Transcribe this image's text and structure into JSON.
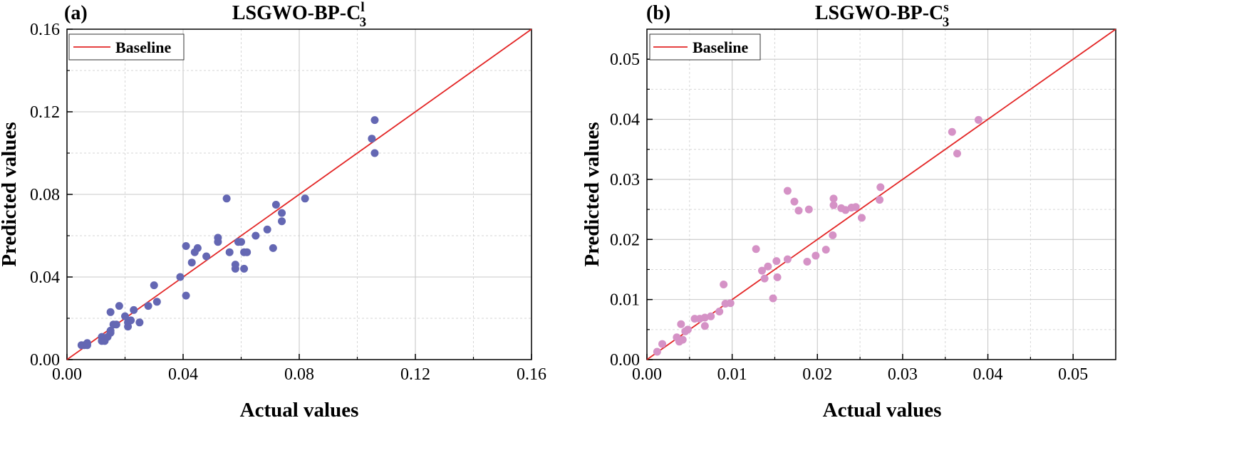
{
  "chart_data": [
    {
      "type": "scatter",
      "panel_label": "(a)",
      "title_main": "LSGWO-BP-C",
      "title_sub": "3",
      "title_sup": "l",
      "xlabel": "Actual values",
      "ylabel": "Predicted values",
      "xlim": [
        0,
        0.16
      ],
      "ylim": [
        0,
        0.16
      ],
      "xticks": [
        "0.00",
        "0.04",
        "0.08",
        "0.12",
        "0.16"
      ],
      "yticks": [
        "0.00",
        "0.04",
        "0.08",
        "0.12",
        "0.16"
      ],
      "major_step": 0.04,
      "minor_step": 0.02,
      "grid": true,
      "legend": {
        "label": "Baseline",
        "position": "top-left"
      },
      "baseline": {
        "name": "Baseline",
        "color": "#e32626"
      },
      "point_color": "#6467b3",
      "points": [
        [
          0.005,
          0.007
        ],
        [
          0.006,
          0.007
        ],
        [
          0.007,
          0.008
        ],
        [
          0.007,
          0.007
        ],
        [
          0.012,
          0.009
        ],
        [
          0.012,
          0.011
        ],
        [
          0.013,
          0.009
        ],
        [
          0.014,
          0.011
        ],
        [
          0.015,
          0.013
        ],
        [
          0.015,
          0.014
        ],
        [
          0.015,
          0.023
        ],
        [
          0.016,
          0.017
        ],
        [
          0.017,
          0.017
        ],
        [
          0.018,
          0.026
        ],
        [
          0.02,
          0.021
        ],
        [
          0.021,
          0.016
        ],
        [
          0.021,
          0.018
        ],
        [
          0.022,
          0.019
        ],
        [
          0.023,
          0.024
        ],
        [
          0.025,
          0.018
        ],
        [
          0.028,
          0.026
        ],
        [
          0.03,
          0.036
        ],
        [
          0.031,
          0.028
        ],
        [
          0.039,
          0.04
        ],
        [
          0.041,
          0.031
        ],
        [
          0.041,
          0.055
        ],
        [
          0.043,
          0.047
        ],
        [
          0.044,
          0.052
        ],
        [
          0.045,
          0.054
        ],
        [
          0.048,
          0.05
        ],
        [
          0.052,
          0.059
        ],
        [
          0.052,
          0.057
        ],
        [
          0.055,
          0.078
        ],
        [
          0.056,
          0.052
        ],
        [
          0.058,
          0.044
        ],
        [
          0.058,
          0.046
        ],
        [
          0.059,
          0.057
        ],
        [
          0.06,
          0.057
        ],
        [
          0.061,
          0.052
        ],
        [
          0.061,
          0.044
        ],
        [
          0.062,
          0.052
        ],
        [
          0.065,
          0.06
        ],
        [
          0.069,
          0.063
        ],
        [
          0.071,
          0.054
        ],
        [
          0.072,
          0.075
        ],
        [
          0.074,
          0.071
        ],
        [
          0.074,
          0.067
        ],
        [
          0.082,
          0.078
        ],
        [
          0.105,
          0.107
        ],
        [
          0.106,
          0.1
        ],
        [
          0.106,
          0.116
        ]
      ]
    },
    {
      "type": "scatter",
      "panel_label": "(b)",
      "title_main": "LSGWO-BP-C",
      "title_sub": "3",
      "title_sup": "s",
      "xlabel": "Actual values",
      "ylabel": "Predicted values",
      "xlim": [
        0,
        0.055
      ],
      "ylim": [
        0,
        0.055
      ],
      "xticks": [
        "0.00",
        "0.01",
        "0.02",
        "0.03",
        "0.04",
        "0.05"
      ],
      "yticks": [
        "0.00",
        "0.01",
        "0.02",
        "0.03",
        "0.04",
        "0.05"
      ],
      "major_step": 0.01,
      "minor_step": 0.005,
      "grid": true,
      "legend": {
        "label": "Baseline",
        "position": "top-left"
      },
      "baseline": {
        "name": "Baseline",
        "color": "#e32626"
      },
      "point_color": "#d592c6",
      "points": [
        [
          0.0012,
          0.0013
        ],
        [
          0.0018,
          0.0026
        ],
        [
          0.0035,
          0.0037
        ],
        [
          0.0038,
          0.003
        ],
        [
          0.004,
          0.0059
        ],
        [
          0.0042,
          0.0033
        ],
        [
          0.0045,
          0.0047
        ],
        [
          0.0048,
          0.005
        ],
        [
          0.0056,
          0.0068
        ],
        [
          0.0062,
          0.0068
        ],
        [
          0.0068,
          0.007
        ],
        [
          0.0068,
          0.0056
        ],
        [
          0.0075,
          0.0072
        ],
        [
          0.0085,
          0.008
        ],
        [
          0.009,
          0.0125
        ],
        [
          0.0092,
          0.0093
        ],
        [
          0.0098,
          0.0094
        ],
        [
          0.0128,
          0.0184
        ],
        [
          0.0135,
          0.0148
        ],
        [
          0.0138,
          0.0135
        ],
        [
          0.0142,
          0.0155
        ],
        [
          0.0148,
          0.0102
        ],
        [
          0.0152,
          0.0164
        ],
        [
          0.0153,
          0.0137
        ],
        [
          0.0165,
          0.0281
        ],
        [
          0.0165,
          0.0167
        ],
        [
          0.0173,
          0.0263
        ],
        [
          0.0178,
          0.0248
        ],
        [
          0.0188,
          0.0163
        ],
        [
          0.019,
          0.025
        ],
        [
          0.0198,
          0.0173
        ],
        [
          0.021,
          0.0183
        ],
        [
          0.0218,
          0.0207
        ],
        [
          0.0219,
          0.0257
        ],
        [
          0.0219,
          0.0268
        ],
        [
          0.0228,
          0.0252
        ],
        [
          0.0233,
          0.0249
        ],
        [
          0.024,
          0.0253
        ],
        [
          0.0245,
          0.0254
        ],
        [
          0.0252,
          0.0236
        ],
        [
          0.0273,
          0.0266
        ],
        [
          0.0274,
          0.0287
        ],
        [
          0.0358,
          0.0379
        ],
        [
          0.0364,
          0.0343
        ],
        [
          0.0389,
          0.0399
        ]
      ]
    }
  ]
}
